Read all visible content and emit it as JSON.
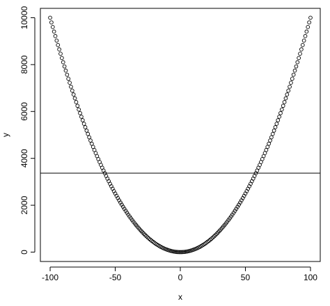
{
  "chart_data": {
    "type": "scatter",
    "xlabel": "x",
    "ylabel": "y",
    "xlim": [
      -107.5,
      107.5
    ],
    "ylim": [
      -400,
      10400
    ],
    "x_ticks": [
      -100,
      -50,
      0,
      50,
      100
    ],
    "y_ticks": [
      0,
      2000,
      4000,
      6000,
      8000,
      10000
    ],
    "x_tick_labels": [
      "-100",
      "-50",
      "0",
      "50",
      "100"
    ],
    "y_tick_labels": [
      "0",
      "2000",
      "4000",
      "6000",
      "8000",
      "10000"
    ],
    "series": [
      {
        "x_from": -100,
        "x_to": 100,
        "x_step": 1,
        "relation": "y = x^2",
        "marker": "open-circle"
      }
    ],
    "hline": 3366.5,
    "grid": false,
    "legend": "none"
  }
}
